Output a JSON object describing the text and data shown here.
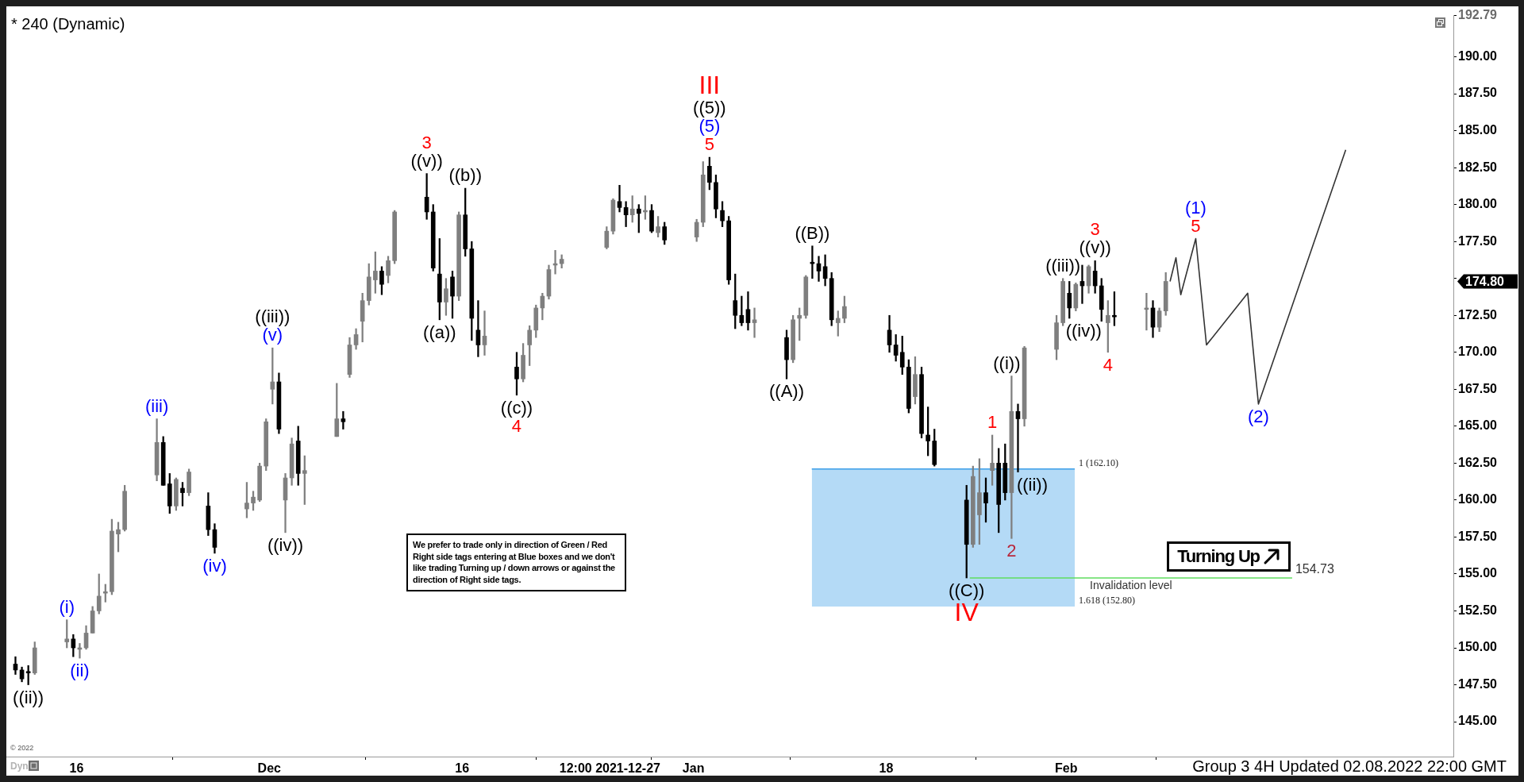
{
  "chart_data": {
    "type": "candlestick",
    "title": "* 240 (Dynamic)",
    "x": [
      "2021-11-11T06:00",
      "2021-11-11T18:00",
      "2021-11-12T06:00",
      "2021-11-12T18:00",
      "2021-11-15T06:00",
      "2021-11-15T18:00",
      "2021-11-16T06:00",
      "2021-11-16T18:00",
      "2021-11-17T06:00",
      "2021-11-17T18:00",
      "2021-11-18T06:00",
      "2021-11-18T18:00",
      "2021-11-19T06:00",
      "2021-11-19T18:00",
      "2021-11-22T06:00",
      "2021-11-22T18:00",
      "2021-11-23T06:00",
      "2021-11-23T18:00",
      "2021-11-24T06:00",
      "2021-11-24T18:00",
      "2021-11-26T06:00",
      "2021-11-26T18:00",
      "2021-11-29T06:00",
      "2021-11-29T18:00",
      "2021-11-30T06:00",
      "2021-11-30T18:00",
      "2021-12-01T06:00",
      "2021-12-01T18:00",
      "2021-12-02T06:00",
      "2021-12-02T18:00",
      "2021-12-03T06:00",
      "2021-12-03T18:00",
      "2021-12-06T06:00",
      "2021-12-06T18:00",
      "2021-12-07T06:00",
      "2021-12-07T18:00",
      "2021-12-08T06:00",
      "2021-12-08T18:00",
      "2021-12-09T06:00",
      "2021-12-09T18:00",
      "2021-12-10T06:00",
      "2021-12-10T18:00",
      "2021-12-13T06:00",
      "2021-12-13T18:00",
      "2021-12-14T06:00",
      "2021-12-14T18:00",
      "2021-12-15T06:00",
      "2021-12-15T18:00",
      "2021-12-16T06:00",
      "2021-12-16T18:00",
      "2021-12-17T06:00",
      "2021-12-17T18:00",
      "2021-12-20T06:00",
      "2021-12-20T18:00",
      "2021-12-21T06:00",
      "2021-12-21T18:00",
      "2021-12-22T06:00",
      "2021-12-22T18:00",
      "2021-12-23T06:00",
      "2021-12-23T18:00",
      "2021-12-27T06:00",
      "2021-12-27T18:00",
      "2021-12-28T06:00",
      "2021-12-28T18:00",
      "2021-12-29T06:00",
      "2021-12-29T18:00",
      "2021-12-30T06:00",
      "2021-12-30T18:00",
      "2021-12-31T06:00",
      "2021-12-31T18:00",
      "2022-01-03T06:00",
      "2022-01-03T18:00",
      "2022-01-04T06:00",
      "2022-01-04T18:00",
      "2022-01-05T06:00",
      "2022-01-05T18:00",
      "2022-01-06T06:00",
      "2022-01-06T18:00",
      "2022-01-07T06:00",
      "2022-01-07T18:00",
      "2022-01-10T06:00",
      "2022-01-10T18:00",
      "2022-01-11T06:00",
      "2022-01-11T18:00",
      "2022-01-12T06:00",
      "2022-01-12T18:00",
      "2022-01-13T06:00",
      "2022-01-13T18:00",
      "2022-01-14T06:00",
      "2022-01-14T18:00",
      "2022-01-18T06:00",
      "2022-01-18T18:00",
      "2022-01-19T06:00",
      "2022-01-19T18:00",
      "2022-01-20T06:00",
      "2022-01-20T18:00",
      "2022-01-21T06:00",
      "2022-01-21T18:00",
      "2022-01-24T06:00",
      "2022-01-24T18:00",
      "2022-01-25T06:00",
      "2022-01-25T18:00",
      "2022-01-26T06:00",
      "2022-01-26T18:00",
      "2022-01-27T06:00",
      "2022-01-27T18:00",
      "2022-01-28T06:00",
      "2022-01-28T18:00",
      "2022-01-31T06:00",
      "2022-01-31T18:00",
      "2022-02-01T06:00",
      "2022-02-01T18:00",
      "2022-02-02T06:00",
      "2022-02-02T18:00",
      "2022-02-03T06:00",
      "2022-02-03T18:00",
      "2022-02-04T06:00",
      "2022-02-04T18:00",
      "2022-02-07T06:00",
      "2022-02-07T18:00",
      "2022-02-08T06:00",
      "2022-02-08T18:00"
    ],
    "ohlc": [
      [
        148.9,
        149.4,
        148.2,
        148.5
      ],
      [
        148.5,
        148.7,
        147.7,
        147.9
      ],
      [
        148.4,
        148.8,
        147.5,
        148.3
      ],
      [
        148.3,
        150.4,
        148.2,
        150.0
      ],
      [
        150.4,
        151.9,
        150.0,
        150.6
      ],
      [
        150.6,
        150.9,
        149.4,
        150.0
      ],
      [
        149.9,
        150.3,
        149.3,
        150.0
      ],
      [
        150.0,
        151.5,
        149.9,
        151.0
      ],
      [
        151.0,
        152.8,
        151.0,
        152.5
      ],
      [
        152.5,
        155.0,
        152.3,
        153.5
      ],
      [
        153.7,
        154.3,
        153.1,
        153.8
      ],
      [
        153.8,
        158.7,
        153.6,
        157.9
      ],
      [
        157.7,
        158.5,
        156.5,
        158.0
      ],
      [
        158.0,
        161.0,
        157.9,
        160.6
      ],
      [
        161.7,
        165.5,
        161.3,
        163.9
      ],
      [
        163.9,
        164.3,
        161.0,
        161.0
      ],
      [
        161.1,
        161.8,
        159.1,
        159.6
      ],
      [
        159.6,
        161.5,
        159.3,
        161.4
      ],
      [
        160.8,
        161.2,
        159.6,
        160.5
      ],
      [
        160.5,
        162.1,
        160.3,
        161.9
      ],
      [
        159.6,
        160.5,
        157.6,
        158.0
      ],
      [
        158.0,
        158.4,
        156.4,
        156.8
      ],
      [
        159.4,
        161.2,
        158.8,
        159.8
      ],
      [
        159.8,
        160.6,
        159.3,
        160.2
      ],
      [
        160.0,
        162.5,
        159.9,
        162.3
      ],
      [
        162.3,
        165.5,
        162.0,
        165.3
      ],
      [
        167.5,
        170.3,
        166.5,
        168.0
      ],
      [
        168.0,
        168.6,
        164.5,
        164.8
      ],
      [
        160.0,
        161.8,
        157.8,
        161.5
      ],
      [
        161.5,
        164.2,
        161.0,
        163.8
      ],
      [
        164.0,
        165.0,
        161.0,
        161.8
      ],
      [
        161.8,
        163.0,
        159.7,
        162.0
      ],
      [
        164.3,
        167.9,
        164.3,
        165.5
      ],
      [
        165.5,
        166.0,
        164.8,
        165.3
      ],
      [
        168.5,
        171.0,
        168.3,
        170.5
      ],
      [
        170.5,
        171.6,
        170.2,
        171.2
      ],
      [
        172.1,
        174.0,
        170.7,
        173.5
      ],
      [
        173.5,
        176.0,
        173.2,
        175.1
      ],
      [
        174.9,
        176.8,
        174.0,
        175.5
      ],
      [
        175.5,
        175.8,
        173.9,
        174.6
      ],
      [
        175.2,
        176.5,
        174.7,
        176.2
      ],
      [
        176.2,
        179.6,
        176.0,
        179.5
      ],
      [
        180.5,
        182.1,
        179.0,
        179.5
      ],
      [
        179.5,
        180.0,
        175.5,
        175.7
      ],
      [
        175.3,
        177.7,
        172.2,
        173.4
      ],
      [
        173.4,
        175.0,
        172.5,
        174.3
      ],
      [
        175.1,
        175.5,
        172.3,
        173.8
      ],
      [
        173.8,
        179.5,
        173.5,
        179.3
      ],
      [
        179.3,
        181.1,
        176.5,
        177.0
      ],
      [
        177.0,
        177.5,
        170.8,
        172.3
      ],
      [
        171.5,
        173.5,
        169.7,
        170.5
      ],
      [
        170.5,
        172.8,
        169.8,
        171.1
      ],
      [
        169.0,
        170.0,
        167.1,
        168.2
      ],
      [
        168.2,
        170.6,
        168.0,
        169.8
      ],
      [
        170.5,
        171.8,
        169.1,
        171.5
      ],
      [
        171.5,
        173.2,
        171.0,
        173.0
      ],
      [
        173.0,
        174.0,
        172.2,
        173.8
      ],
      [
        173.8,
        175.9,
        173.6,
        175.6
      ],
      [
        175.9,
        176.9,
        175.3,
        176.0
      ],
      [
        176.0,
        176.6,
        175.7,
        176.3
      ],
      [
        177.1,
        178.5,
        177.0,
        178.2
      ],
      [
        178.2,
        180.4,
        178.0,
        180.3
      ],
      [
        180.2,
        181.3,
        179.5,
        179.8
      ],
      [
        179.8,
        180.2,
        178.5,
        179.3
      ],
      [
        179.3,
        180.6,
        178.8,
        179.7
      ],
      [
        179.7,
        180.0,
        178.1,
        179.4
      ],
      [
        179.5,
        180.6,
        179.0,
        179.6
      ],
      [
        179.6,
        180.0,
        178.1,
        178.2
      ],
      [
        178.1,
        179.2,
        177.8,
        178.5
      ],
      [
        178.5,
        178.8,
        177.3,
        177.6
      ],
      [
        177.8,
        179.0,
        177.5,
        178.8
      ],
      [
        178.8,
        182.9,
        178.5,
        182.0
      ],
      [
        182.6,
        183.2,
        181.0,
        181.5
      ],
      [
        181.5,
        182.0,
        179.1,
        179.7
      ],
      [
        179.6,
        180.2,
        178.5,
        178.9
      ],
      [
        178.9,
        179.2,
        174.6,
        174.9
      ],
      [
        173.5,
        175.3,
        171.6,
        172.5
      ],
      [
        172.5,
        173.8,
        171.8,
        172.0
      ],
      [
        172.9,
        174.1,
        171.5,
        172.0
      ],
      [
        172.0,
        173.0,
        171.0,
        172.2
      ],
      [
        171.0,
        171.5,
        168.2,
        169.5
      ],
      [
        169.5,
        172.5,
        169.3,
        172.2
      ],
      [
        172.3,
        173.0,
        170.8,
        172.5
      ],
      [
        172.5,
        175.2,
        172.3,
        175.1
      ],
      [
        176.1,
        177.2,
        175.0,
        176.0
      ],
      [
        176.0,
        176.5,
        174.8,
        175.5
      ],
      [
        175.8,
        176.6,
        174.5,
        175.0
      ],
      [
        175.0,
        175.4,
        171.8,
        172.2
      ],
      [
        172.0,
        172.8,
        171.1,
        172.3
      ],
      [
        172.3,
        173.8,
        172.0,
        173.1
      ],
      [
        171.5,
        172.5,
        170.0,
        170.5
      ],
      [
        170.5,
        171.2,
        169.4,
        169.8
      ],
      [
        170.0,
        171.1,
        168.5,
        169.0
      ],
      [
        169.0,
        169.5,
        165.9,
        166.2
      ],
      [
        167.0,
        169.7,
        166.5,
        168.5
      ],
      [
        168.5,
        169.0,
        164.2,
        164.5
      ],
      [
        164.4,
        166.3,
        163.0,
        164.0
      ],
      [
        164.0,
        164.8,
        162.3,
        162.4
      ],
      [
        160.0,
        161.0,
        154.73,
        157.0
      ],
      [
        157.0,
        162.3,
        156.8,
        161.6
      ],
      [
        159.0,
        162.8,
        157.0,
        160.5
      ],
      [
        160.5,
        161.5,
        158.5,
        159.8
      ],
      [
        162.0,
        164.4,
        161.0,
        162.5
      ],
      [
        162.5,
        163.5,
        157.8,
        159.7
      ],
      [
        162.5,
        163.8,
        160.0,
        160.5
      ],
      [
        160.5,
        168.4,
        157.4,
        166.0
      ],
      [
        166.0,
        166.5,
        161.9,
        165.5
      ],
      [
        165.5,
        170.4,
        165.0,
        170.3
      ],
      [
        170.2,
        172.5,
        169.5,
        172.0
      ],
      [
        172.0,
        175.0,
        171.8,
        174.8
      ],
      [
        174.0,
        174.8,
        172.3,
        173.0
      ],
      [
        173.0,
        174.7,
        172.8,
        174.6
      ],
      [
        174.8,
        175.9,
        173.3,
        174.5
      ],
      [
        174.5,
        175.9,
        174.0,
        175.8
      ],
      [
        175.5,
        176.2,
        174.0,
        174.5
      ],
      [
        174.5,
        175.0,
        172.1,
        172.9
      ],
      [
        172.0,
        173.5,
        170.0,
        172.5
      ],
      [
        172.5,
        174.1,
        171.8,
        172.4
      ],
      [
        172.9,
        174.0,
        171.5,
        173.0
      ],
      [
        173.0,
        173.5,
        171.0,
        171.7
      ],
      [
        171.7,
        173.0,
        171.4,
        172.8
      ],
      [
        172.8,
        175.4,
        172.5,
        174.8
      ]
    ],
    "colors": [
      "#000000",
      "#000000",
      "#000000",
      "#7f7f7f",
      "#7f7f7f",
      "#000000",
      "#7f7f7f",
      "#7f7f7f",
      "#7f7f7f",
      "#7f7f7f",
      "#7f7f7f",
      "#7f7f7f",
      "#7f7f7f",
      "#7f7f7f",
      "#7f7f7f",
      "#000000",
      "#000000",
      "#7f7f7f",
      "#000000",
      "#7f7f7f",
      "#000000",
      "#000000",
      "#7f7f7f",
      "#7f7f7f",
      "#7f7f7f",
      "#7f7f7f",
      "#7f7f7f",
      "#000000",
      "#7f7f7f",
      "#7f7f7f",
      "#000000",
      "#7f7f7f",
      "#7f7f7f",
      "#000000",
      "#7f7f7f",
      "#7f7f7f",
      "#7f7f7f",
      "#7f7f7f",
      "#7f7f7f",
      "#000000",
      "#7f7f7f",
      "#7f7f7f",
      "#000000",
      "#000000",
      "#000000",
      "#7f7f7f",
      "#000000",
      "#7f7f7f",
      "#000000",
      "#000000",
      "#000000",
      "#7f7f7f",
      "#000000",
      "#7f7f7f",
      "#7f7f7f",
      "#7f7f7f",
      "#7f7f7f",
      "#7f7f7f",
      "#7f7f7f",
      "#7f7f7f",
      "#7f7f7f",
      "#7f7f7f",
      "#000000",
      "#000000",
      "#7f7f7f",
      "#000000",
      "#7f7f7f",
      "#000000",
      "#7f7f7f",
      "#000000",
      "#7f7f7f",
      "#7f7f7f",
      "#000000",
      "#000000",
      "#000000",
      "#000000",
      "#000000",
      "#000000",
      "#000000",
      "#7f7f7f",
      "#000000",
      "#7f7f7f",
      "#7f7f7f",
      "#7f7f7f",
      "#000000",
      "#000000",
      "#000000",
      "#000000",
      "#7f7f7f",
      "#7f7f7f",
      "#000000",
      "#000000",
      "#000000",
      "#000000",
      "#7f7f7f",
      "#000000",
      "#000000",
      "#000000",
      "#000000",
      "#7f7f7f",
      "#7f7f7f",
      "#000000",
      "#7f7f7f",
      "#000000",
      "#000000",
      "#7f7f7f",
      "#000000",
      "#7f7f7f",
      "#7f7f7f",
      "#7f7f7f",
      "#000000",
      "#7f7f7f",
      "#000000",
      "#7f7f7f",
      "#000000",
      "#000000",
      "#7f7f7f",
      "#000000",
      "#7f7f7f",
      "#000000",
      "#7f7f7f",
      "#7f7f7f"
    ],
    "series": [
      {
        "type": "line",
        "x": [
          "2022-01-12T05:00",
          "2022-02-01T16:00"
        ],
        "values": [
          162.1,
          162.1
        ],
        "lower": [
          152.8,
          152.8
        ],
        "upper": [
          162.1,
          162.1
        ],
        "color": "#3a9ee8"
      },
      {
        "type": "line",
        "name": "Invalidation level",
        "x": [
          "2022-01-24T12:00",
          "2022-02-18T14:00"
        ],
        "values": [
          154.73,
          154.73
        ],
        "value_labels": [
          null,
          "154.73"
        ],
        "color": "#5fdc5f"
      },
      {
        "type": "line",
        "x": [
          "2022-02-09T02:00",
          "2022-02-09T13:00",
          "2022-02-09T22:00",
          "2022-02-11T02:00",
          "2022-02-11T22:00",
          "2022-02-15T03:00",
          "2022-02-15T23:00",
          "2022-02-22T18:00"
        ],
        "values": [
          174.8,
          176.4,
          173.9,
          177.7,
          170.5,
          174.0,
          166.5,
          183.7
        ],
        "color": "#333333"
      }
    ],
    "xlim": [
      "2021-11-10T13:00",
      "2022-03-03T03:00"
    ],
    "xticks": [
      {
        "value": "2021-11-16",
        "label": "16"
      },
      {
        "value": "2021-12-01",
        "label": "Dec"
      },
      {
        "value": "2021-12-16",
        "label": "16"
      },
      {
        "value": "2021-12-27T12:00",
        "label": "12:00 2021-12-27"
      },
      {
        "value": "2022-01-03",
        "label": "Jan"
      },
      {
        "value": "2022-01-18",
        "label": "18"
      },
      {
        "value": "2022-02-01",
        "label": "Feb"
      }
    ],
    "ylim": [
      142.64,
      192.79
    ],
    "yticks": [
      {
        "value": 145,
        "label": "145.00"
      },
      {
        "value": 147.5,
        "label": "147.50"
      },
      {
        "value": 150,
        "label": "150.00"
      },
      {
        "value": 152.5,
        "label": "152.50"
      },
      {
        "value": 155,
        "label": "155.00"
      },
      {
        "value": 157.5,
        "label": "157.50"
      },
      {
        "value": 160,
        "label": "160.00"
      },
      {
        "value": 162.5,
        "label": "162.50"
      },
      {
        "value": 165,
        "label": "165.00"
      },
      {
        "value": 167.5,
        "label": "167.50"
      },
      {
        "value": 170,
        "label": "170.00"
      },
      {
        "value": 172.5,
        "label": "172.50"
      },
      {
        "value": 175,
        "label": null
      },
      {
        "value": 177.5,
        "label": "177.50"
      },
      {
        "value": 180,
        "label": "180.00"
      },
      {
        "value": 182.5,
        "label": "182.50"
      },
      {
        "value": 185,
        "label": "185.00"
      },
      {
        "value": 187.5,
        "label": "187.50"
      },
      {
        "value": 190,
        "label": "190.00"
      },
      192.79
    ],
    "annotations": [
      "We prefer to trade only in direction of Green / Red Right side tags entering at Blue boxes and we don't like trading Turning up / down arrows or against the direction of Right side tags.",
      "Turning Up",
      "Group 3 4H Updated 02.08.2022 22:00 GMT",
      "© 2022",
      "Dyn",
      "174.80",
      {
        "text": "((ii))",
        "x": "2021-11-12T06:00",
        "y": 147.5
      },
      {
        "text": "(i)",
        "x": "2021-11-15T06:00",
        "y": 151.9
      },
      {
        "text": "(ii)",
        "x": "2021-11-16T06:00",
        "y": 149.3
      },
      {
        "text": "(iii)",
        "x": "2021-11-22T06:00",
        "y": 165.5
      },
      {
        "text": "(iv)",
        "x": "2021-11-26T18:00",
        "y": 156.4
      },
      {
        "text": "((iii))",
        "x": "2021-12-01T06:00",
        "y": 170.3
      },
      {
        "text": "(v)",
        "x": "2021-12-01T06:00",
        "y": 170.3
      },
      {
        "text": "((iv))",
        "x": "2021-12-02T06:00",
        "y": 157.8
      },
      {
        "text": "3",
        "x": "2021-12-13T06:00",
        "y": 182.1
      },
      {
        "text": "((v))",
        "x": "2021-12-13T06:00",
        "y": 182.1
      },
      {
        "text": "((a))",
        "x": "2021-12-14T06:00",
        "y": 172.2
      },
      {
        "text": "((b))",
        "x": "2021-12-16T06:00",
        "y": 181.1
      },
      {
        "text": "((c))",
        "x": "2021-12-20T06:00",
        "y": 167.1
      },
      {
        "text": "4",
        "x": "2021-12-20T06:00",
        "y": 167.1
      },
      {
        "text": "III",
        "x": "2022-01-04T06:00",
        "y": 183.2
      },
      {
        "text": "((5))",
        "x": "2022-01-04T06:00",
        "y": 183.2
      },
      {
        "text": "(5)",
        "x": "2022-01-04T06:00",
        "y": 183.2
      },
      {
        "text": "5",
        "x": "2022-01-04T06:00",
        "y": 183.2
      },
      {
        "text": "((A))",
        "x": "2022-01-10T06:00",
        "y": 168.2
      },
      {
        "text": "((B))",
        "x": "2022-01-12T06:00",
        "y": 177.2
      },
      {
        "text": "((C))",
        "x": "2022-01-24T06:00",
        "y": 154.73
      },
      {
        "text": "IV",
        "x": "2022-01-24T06:00",
        "y": 154.73
      },
      {
        "text": "1",
        "x": "2022-01-26T06:00",
        "y": 164.4
      },
      {
        "text": "((i))",
        "x": "2022-01-27T18:00",
        "y": 168.4
      },
      {
        "text": "2",
        "x": "2022-01-27T18:00",
        "y": 157.4
      },
      {
        "text": "((ii))",
        "x": "2022-01-28T06:00",
        "y": 161.9
      },
      {
        "text": "((iii))",
        "x": "2022-01-31T18:00",
        "y": 175.0
      },
      {
        "text": "((iv))",
        "x": "2022-02-01T06:00",
        "y": 172.3
      },
      {
        "text": "3",
        "x": "2022-02-03T06:00",
        "y": 176.2
      },
      {
        "text": "((v))",
        "x": "2022-02-03T06:00",
        "y": 176.2
      },
      {
        "text": "4",
        "x": "2022-02-04T06:00",
        "y": 170.0
      },
      {
        "text": "(1)",
        "x": "2022-02-11T02:00",
        "y": 177.7
      },
      {
        "text": "5",
        "x": "2022-02-11T02:00",
        "y": 177.7
      },
      {
        "text": "(2)",
        "x": "2022-02-15T23:00",
        "y": 166.5
      },
      {
        "text": "1 (162.10)",
        "x": "2022-02-01T16:00",
        "y": 162.1
      },
      {
        "text": "1.618 (152.80)",
        "x": "2022-02-01T16:00",
        "y": 152.8
      }
    ]
  }
}
